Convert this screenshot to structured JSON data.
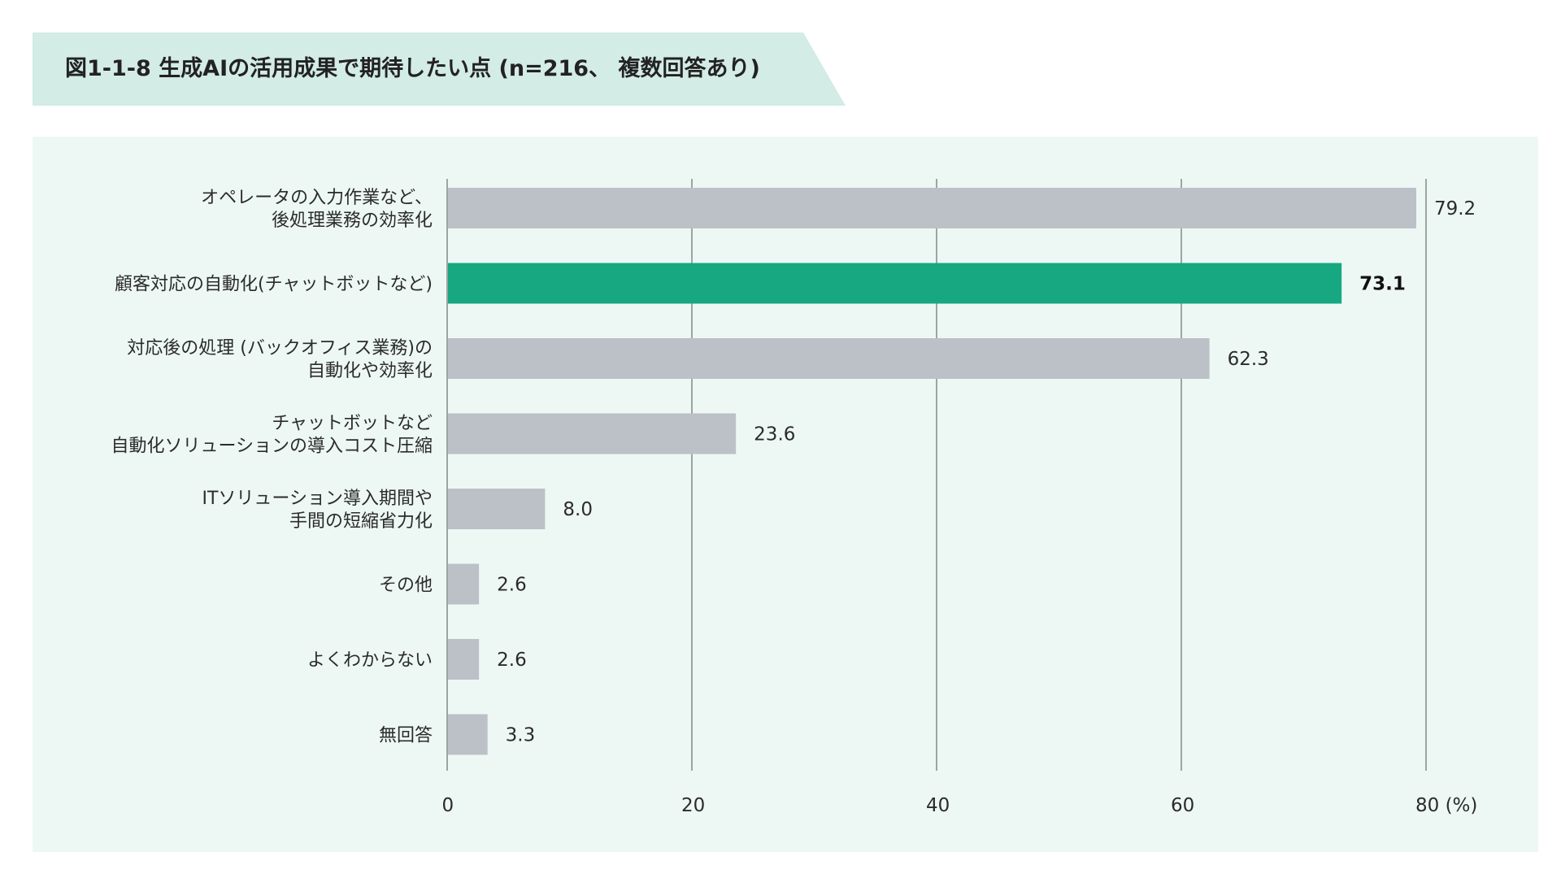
{
  "title": "図1-1-8 生成AIの活用成果で期待したい点 (n=216、 複数回答あり)",
  "colors": {
    "bar": "#bcc0c7",
    "highlight": "#17a882",
    "grid": "#7f8a86",
    "banner": "#d3ece5",
    "panel": "#edf8f4"
  },
  "chart_data": {
    "type": "bar",
    "orientation": "horizontal",
    "categories": [
      [
        "オペレータの入力作業など、",
        "後処理業務の効率化"
      ],
      [
        "顧客対応の自動化(チャットボットなど)"
      ],
      [
        "対応後の処理 (バックオフィス業務)の",
        "自動化や効率化"
      ],
      [
        "チャットボットなど",
        "自動化ソリューションの導入コスト圧縮"
      ],
      [
        "ITソリューション導入期間や",
        "手間の短縮省力化"
      ],
      [
        "その他"
      ],
      [
        "よくわからない"
      ],
      [
        "無回答"
      ]
    ],
    "values": [
      79.2,
      73.1,
      62.3,
      23.6,
      8.0,
      2.6,
      2.6,
      3.3
    ],
    "value_labels": [
      "79.2",
      "73.1",
      "62.3",
      "23.6",
      "8.0",
      "2.6",
      "2.6",
      "3.3"
    ],
    "highlight_index": 1,
    "xlim": [
      0,
      80
    ],
    "x_ticks": [
      0,
      20,
      40,
      60,
      80
    ],
    "x_tick_labels": [
      "0",
      "20",
      "40",
      "60",
      "80 (%)"
    ],
    "grid": true
  }
}
